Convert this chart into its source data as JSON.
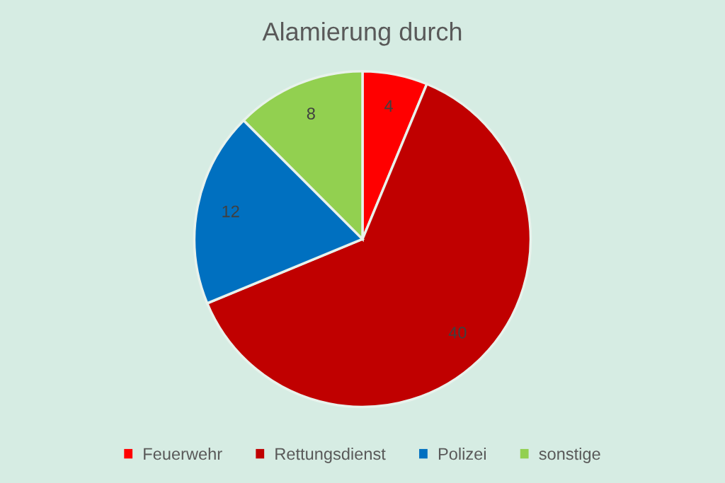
{
  "chart_data": {
    "type": "pie",
    "title": "Alamierung durch",
    "categories": [
      "Feuerwehr",
      "Rettungsdienst",
      "Polizei",
      "sonstige"
    ],
    "values": [
      4,
      40,
      12,
      8
    ],
    "colors": [
      "#ff0000",
      "#c00000",
      "#0070c0",
      "#92d050"
    ],
    "data_labels": true,
    "legend": "bottom"
  }
}
